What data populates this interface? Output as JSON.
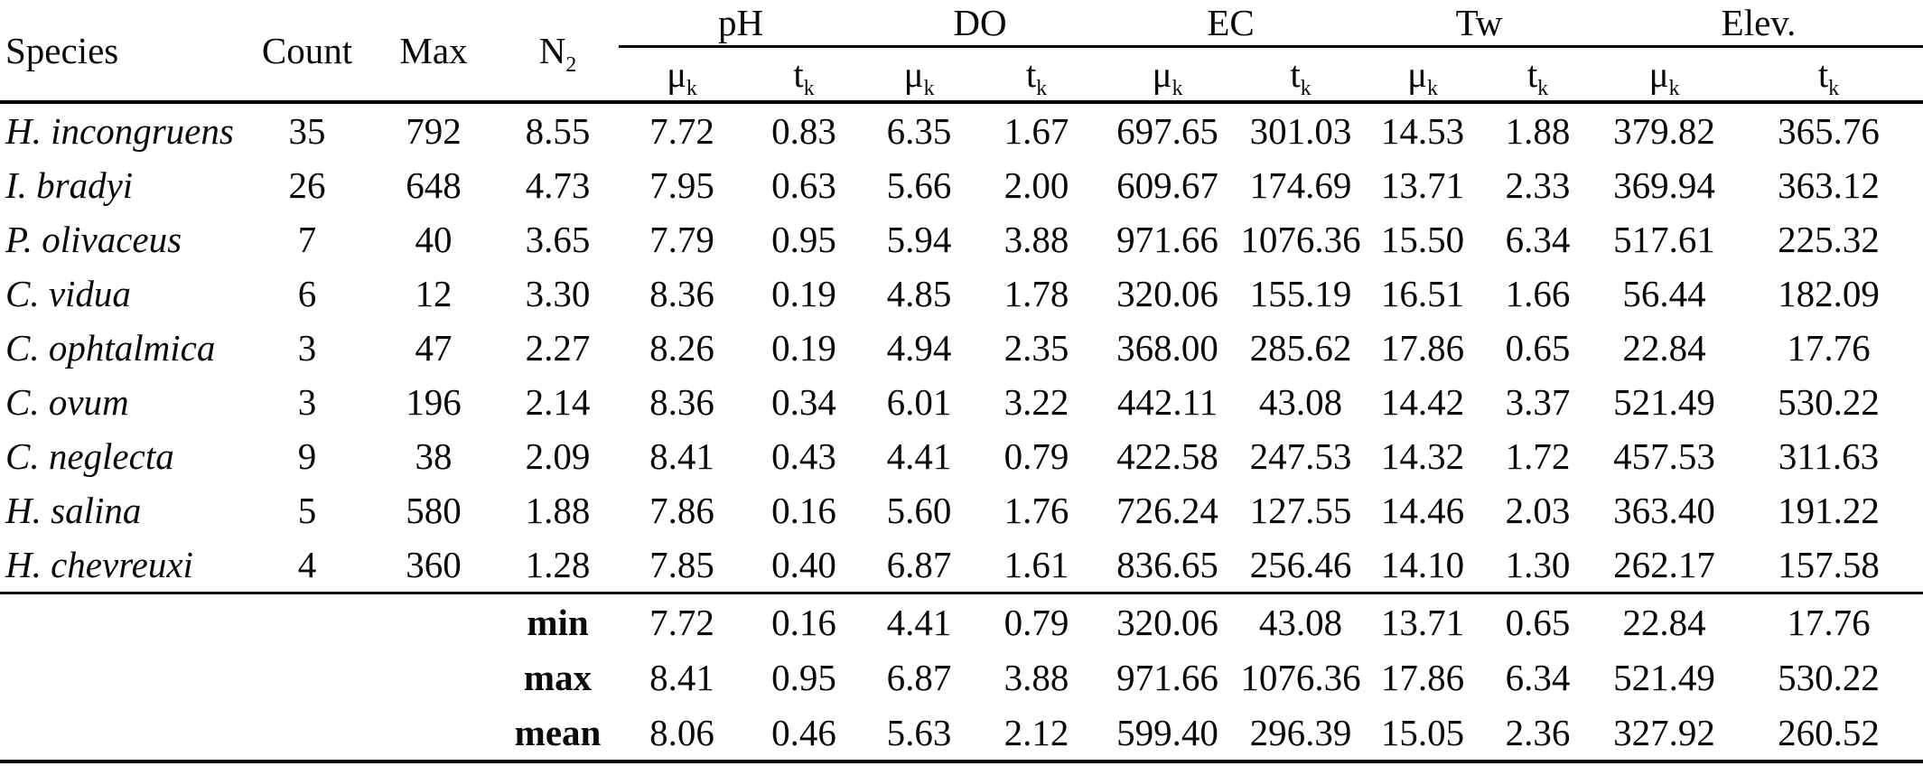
{
  "table": {
    "headers": {
      "species": "Species",
      "count": "Count",
      "max": "Max",
      "n_base": "N",
      "n_sub": "2",
      "mu_base": "μ",
      "t_base": "t",
      "sub_k": "k",
      "groups": [
        "pH",
        "DO",
        "EC",
        "Tw",
        "Elev."
      ]
    },
    "rows": [
      {
        "species": "H. incongruens",
        "values": [
          "35",
          "792",
          "8.55",
          "7.72",
          "0.83",
          "6.35",
          "1.67",
          "697.65",
          "301.03",
          "14.53",
          "1.88",
          "379.82",
          "365.76"
        ]
      },
      {
        "species": "I. bradyi",
        "values": [
          "26",
          "648",
          "4.73",
          "7.95",
          "0.63",
          "5.66",
          "2.00",
          "609.67",
          "174.69",
          "13.71",
          "2.33",
          "369.94",
          "363.12"
        ]
      },
      {
        "species": "P. olivaceus",
        "values": [
          "7",
          "40",
          "3.65",
          "7.79",
          "0.95",
          "5.94",
          "3.88",
          "971.66",
          "1076.36",
          "15.50",
          "6.34",
          "517.61",
          "225.32"
        ]
      },
      {
        "species": "C. vidua",
        "values": [
          "6",
          "12",
          "3.30",
          "8.36",
          "0.19",
          "4.85",
          "1.78",
          "320.06",
          "155.19",
          "16.51",
          "1.66",
          "56.44",
          "182.09"
        ]
      },
      {
        "species": "C. ophtalmica",
        "values": [
          "3",
          "47",
          "2.27",
          "8.26",
          "0.19",
          "4.94",
          "2.35",
          "368.00",
          "285.62",
          "17.86",
          "0.65",
          "22.84",
          "17.76"
        ]
      },
      {
        "species": "C. ovum",
        "values": [
          "3",
          "196",
          "2.14",
          "8.36",
          "0.34",
          "6.01",
          "3.22",
          "442.11",
          "43.08",
          "14.42",
          "3.37",
          "521.49",
          "530.22"
        ]
      },
      {
        "species": "C. neglecta",
        "values": [
          "9",
          "38",
          "2.09",
          "8.41",
          "0.43",
          "4.41",
          "0.79",
          "422.58",
          "247.53",
          "14.32",
          "1.72",
          "457.53",
          "311.63"
        ]
      },
      {
        "species": "H. salina",
        "values": [
          "5",
          "580",
          "1.88",
          "7.86",
          "0.16",
          "5.60",
          "1.76",
          "726.24",
          "127.55",
          "14.46",
          "2.03",
          "363.40",
          "191.22"
        ]
      },
      {
        "species": "H. chevreuxi",
        "values": [
          "4",
          "360",
          "1.28",
          "7.85",
          "0.40",
          "6.87",
          "1.61",
          "836.65",
          "256.46",
          "14.10",
          "1.30",
          "262.17",
          "157.58"
        ]
      }
    ],
    "summary": [
      {
        "label": "min",
        "values": [
          "7.72",
          "0.16",
          "4.41",
          "0.79",
          "320.06",
          "43.08",
          "13.71",
          "0.65",
          "22.84",
          "17.76"
        ]
      },
      {
        "label": "max",
        "values": [
          "8.41",
          "0.95",
          "6.87",
          "3.88",
          "971.66",
          "1076.36",
          "17.86",
          "6.34",
          "521.49",
          "530.22"
        ]
      },
      {
        "label": "mean",
        "values": [
          "8.06",
          "0.46",
          "5.63",
          "2.12",
          "599.40",
          "296.39",
          "15.05",
          "2.36",
          "327.92",
          "260.52"
        ]
      }
    ]
  },
  "colors": {
    "text": "#0a0a0a",
    "background": "#ffffff",
    "rule": "#000000"
  }
}
